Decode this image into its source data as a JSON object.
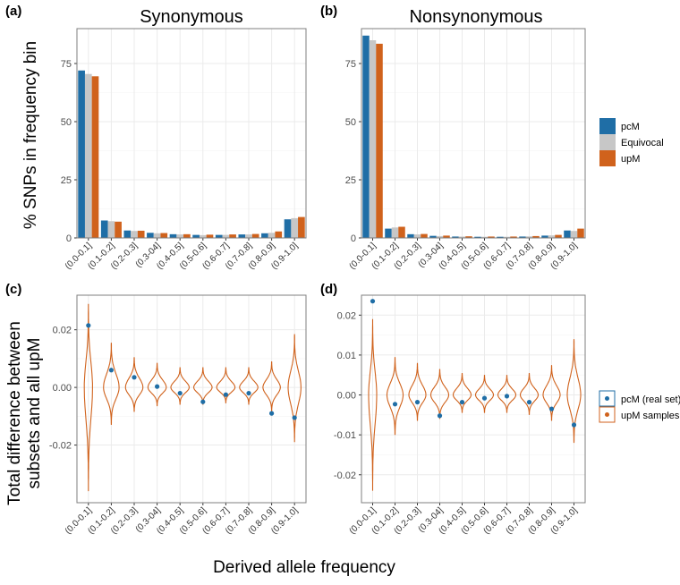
{
  "figure": {
    "ylabel_top": "% SNPs in frequency bin",
    "ylabel_bottom": [
      "Total difference between",
      "subsets and all upM"
    ],
    "xlabel": "Derived allele frequency",
    "colors": {
      "pcM": "#1f6ea6",
      "Equivocal": "#c7c7c7",
      "upM": "#d0621c",
      "grid": "#ebebeb",
      "frame": "#7f7f7f"
    }
  },
  "legend_top": {
    "items": [
      "pcM",
      "Equivocal",
      "upM"
    ]
  },
  "legend_bottom": {
    "items": [
      "pcM (real set)",
      "upM samples"
    ]
  },
  "chart_data": [
    {
      "panel": "(a)",
      "title": "Synonymous",
      "type": "bar",
      "categories": [
        "(0.0-0.1]",
        "(0.1-0.2]",
        "(0.2-0.3]",
        "(0.3-04]",
        "(0.4-0.5]",
        "(0.5-0.6]",
        "(0.6-0.7]",
        "(0.7-0.8]",
        "(0.8-0.9]",
        "(0.9-1.0]"
      ],
      "ylim": [
        0,
        90
      ],
      "yticks": [
        0,
        25,
        50,
        75
      ],
      "grid": true,
      "series": [
        {
          "name": "pcM",
          "values": [
            72,
            7.5,
            3.2,
            2.2,
            1.6,
            1.3,
            1.3,
            1.5,
            2.0,
            8.0
          ]
        },
        {
          "name": "Equivocal",
          "values": [
            70.5,
            7.2,
            3.0,
            2.0,
            1.5,
            1.2,
            1.3,
            1.5,
            2.2,
            8.5
          ]
        },
        {
          "name": "upM",
          "values": [
            69.5,
            7.0,
            3.1,
            2.1,
            1.6,
            1.4,
            1.5,
            1.7,
            2.8,
            9.0
          ]
        }
      ]
    },
    {
      "panel": "(b)",
      "title": "Nonsynonymous",
      "type": "bar",
      "categories": [
        "(0.0-0.1]",
        "(0.1-0.2]",
        "(0.2-0.3]",
        "(0.3-04]",
        "(0.4-0.5]",
        "(0.5-0.6]",
        "(0.6-0.7]",
        "(0.7-0.8]",
        "(0.8-0.9]",
        "(0.9-1.0]"
      ],
      "ylim": [
        0,
        90
      ],
      "yticks": [
        0,
        25,
        50,
        75
      ],
      "grid": true,
      "series": [
        {
          "name": "pcM",
          "values": [
            87,
            4.0,
            1.6,
            0.9,
            0.6,
            0.5,
            0.5,
            0.6,
            1.0,
            3.2
          ]
        },
        {
          "name": "Equivocal",
          "values": [
            85,
            4.5,
            1.5,
            0.8,
            0.6,
            0.5,
            0.5,
            0.7,
            1.1,
            3.0
          ]
        },
        {
          "name": "upM",
          "values": [
            83.5,
            4.8,
            1.7,
            1.0,
            0.7,
            0.6,
            0.6,
            0.8,
            1.3,
            4.0
          ]
        }
      ]
    },
    {
      "panel": "(c)",
      "type": "violin",
      "categories": [
        "(0.0-0.1]",
        "(0.1-0.2]",
        "(0.2-0.3]",
        "(0.3-04]",
        "(0.4-0.5]",
        "(0.5-0.6]",
        "(0.6-0.7]",
        "(0.7-0.8]",
        "(0.8-0.9]",
        "(0.9-1.0]"
      ],
      "ylim": [
        -0.04,
        0.032
      ],
      "yticks": [
        -0.02,
        0.0,
        0.02
      ],
      "ytick_labels": [
        "-0.02",
        "0.00",
        "0.02"
      ],
      "grid": true,
      "violins": [
        {
          "min": -0.036,
          "max": 0.029,
          "center": 0.0,
          "halfwidth": 0.18
        },
        {
          "min": -0.013,
          "max": 0.0155,
          "center": 0.0,
          "halfwidth": 0.34
        },
        {
          "min": -0.0085,
          "max": 0.0105,
          "center": 0.0,
          "halfwidth": 0.38
        },
        {
          "min": -0.0065,
          "max": 0.0085,
          "center": 0.0,
          "halfwidth": 0.4
        },
        {
          "min": -0.006,
          "max": 0.007,
          "center": 0.0,
          "halfwidth": 0.4
        },
        {
          "min": -0.006,
          "max": 0.007,
          "center": 0.0,
          "halfwidth": 0.4
        },
        {
          "min": -0.0055,
          "max": 0.007,
          "center": 0.0,
          "halfwidth": 0.4
        },
        {
          "min": -0.006,
          "max": 0.007,
          "center": 0.0,
          "halfwidth": 0.4
        },
        {
          "min": -0.0085,
          "max": 0.009,
          "center": 0.0,
          "halfwidth": 0.38
        },
        {
          "min": -0.019,
          "max": 0.0185,
          "center": 0.0,
          "halfwidth": 0.28
        }
      ],
      "points": {
        "name": "pcM (real set)",
        "values": [
          0.0215,
          0.006,
          0.0035,
          0.0003,
          -0.002,
          -0.005,
          -0.0025,
          -0.002,
          -0.009,
          -0.0105
        ]
      }
    },
    {
      "panel": "(d)",
      "type": "violin",
      "categories": [
        "(0.0-0.1]",
        "(0.1-0.2]",
        "(0.2-0.3]",
        "(0.3-04]",
        "(0.4-0.5]",
        "(0.5-0.6]",
        "(0.6-0.7]",
        "(0.7-0.8]",
        "(0.8-0.9]",
        "(0.9-1.0]"
      ],
      "ylim": [
        -0.027,
        0.025
      ],
      "yticks": [
        -0.02,
        -0.01,
        0.0,
        0.01,
        0.02
      ],
      "ytick_labels": [
        "-0.02",
        "-0.01",
        "0.00",
        "0.01",
        "0.02"
      ],
      "grid": true,
      "violins": [
        {
          "min": -0.024,
          "max": 0.019,
          "center": 0.0,
          "halfwidth": 0.18
        },
        {
          "min": -0.01,
          "max": 0.0095,
          "center": 0.0,
          "halfwidth": 0.36
        },
        {
          "min": -0.0065,
          "max": 0.008,
          "center": 0.0,
          "halfwidth": 0.38
        },
        {
          "min": -0.006,
          "max": 0.0065,
          "center": 0.0,
          "halfwidth": 0.4
        },
        {
          "min": -0.0045,
          "max": 0.0055,
          "center": 0.0,
          "halfwidth": 0.4
        },
        {
          "min": -0.0045,
          "max": 0.005,
          "center": 0.0,
          "halfwidth": 0.4
        },
        {
          "min": -0.0045,
          "max": 0.005,
          "center": 0.0,
          "halfwidth": 0.4
        },
        {
          "min": -0.005,
          "max": 0.0055,
          "center": 0.0,
          "halfwidth": 0.4
        },
        {
          "min": -0.0065,
          "max": 0.0075,
          "center": 0.0,
          "halfwidth": 0.38
        },
        {
          "min": -0.012,
          "max": 0.014,
          "center": 0.0,
          "halfwidth": 0.3
        }
      ],
      "points": {
        "name": "pcM (real set)",
        "values": [
          0.0235,
          -0.0023,
          -0.0018,
          -0.0052,
          -0.0018,
          -0.0008,
          -0.0003,
          -0.0018,
          -0.0035,
          -0.0075
        ]
      }
    }
  ]
}
